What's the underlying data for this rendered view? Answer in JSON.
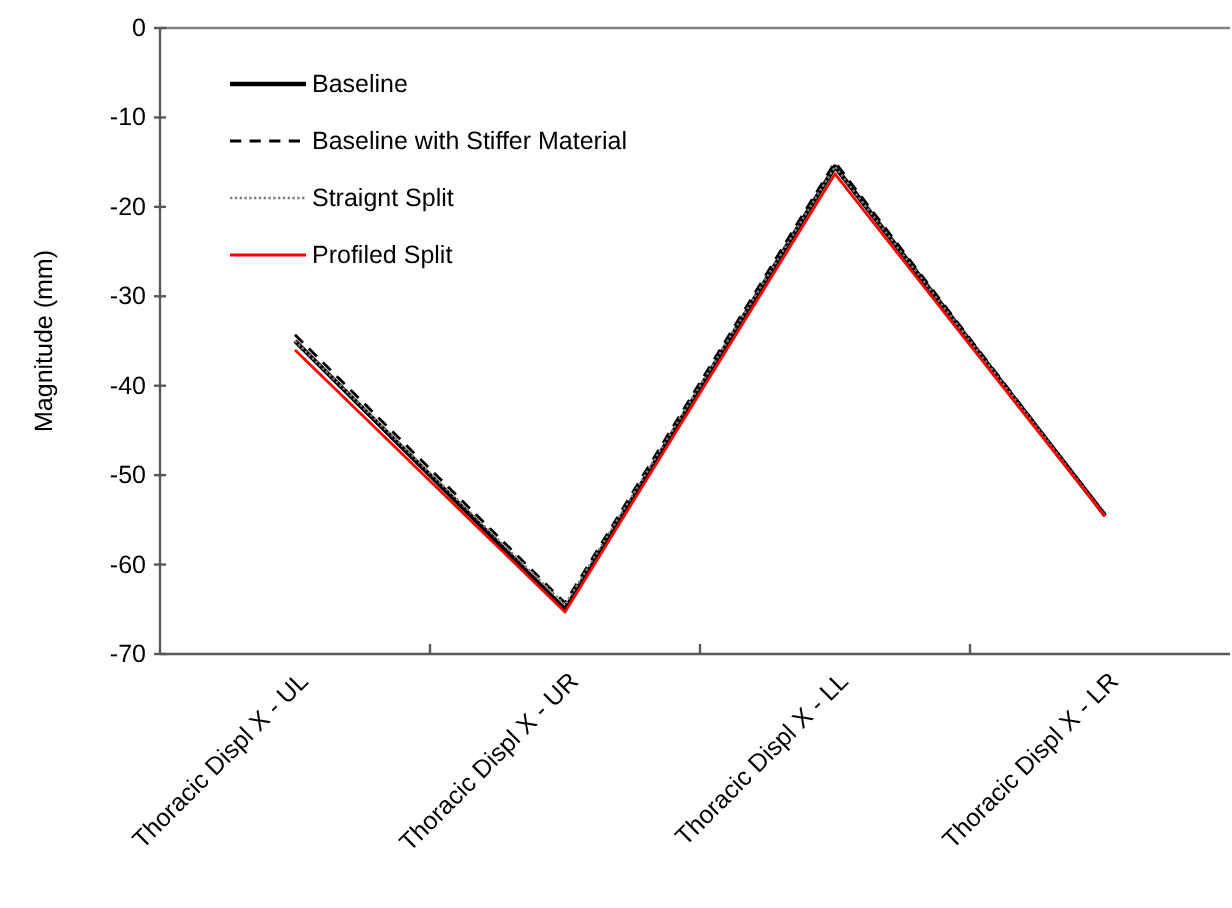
{
  "chart_data": {
    "type": "line",
    "ylabel": "Magnitude (mm)",
    "categories": [
      "Thoracic Displ X - UL",
      "Thoracic Displ X - UR",
      "Thoracic Displ X - LL",
      "Thoracic Displ X - LR"
    ],
    "ylim": [
      -70,
      0
    ],
    "yticks": [
      -70,
      -60,
      -50,
      -40,
      -30,
      -20,
      -10,
      0
    ],
    "grid": false,
    "legend": "top left",
    "series": [
      {
        "name": "Baseline",
        "color": "#000000",
        "line_style": "solid",
        "values": [
          -35,
          -65,
          -15.5,
          -54.5
        ]
      },
      {
        "name": "Baseline with Stiffer Material",
        "color": "#000000",
        "line_style": "dashed",
        "values": [
          -34.3,
          -64.3,
          -15,
          -54.5
        ]
      },
      {
        "name": "Straignt Split",
        "color": "#808080",
        "line_style": "dotted",
        "values": [
          -35,
          -64.5,
          -15.5,
          -54.5
        ]
      },
      {
        "name": "Profiled Split",
        "color": "#ff0000",
        "line_style": "solid",
        "values": [
          -36,
          -65.3,
          -16.3,
          -54.6
        ]
      }
    ]
  }
}
